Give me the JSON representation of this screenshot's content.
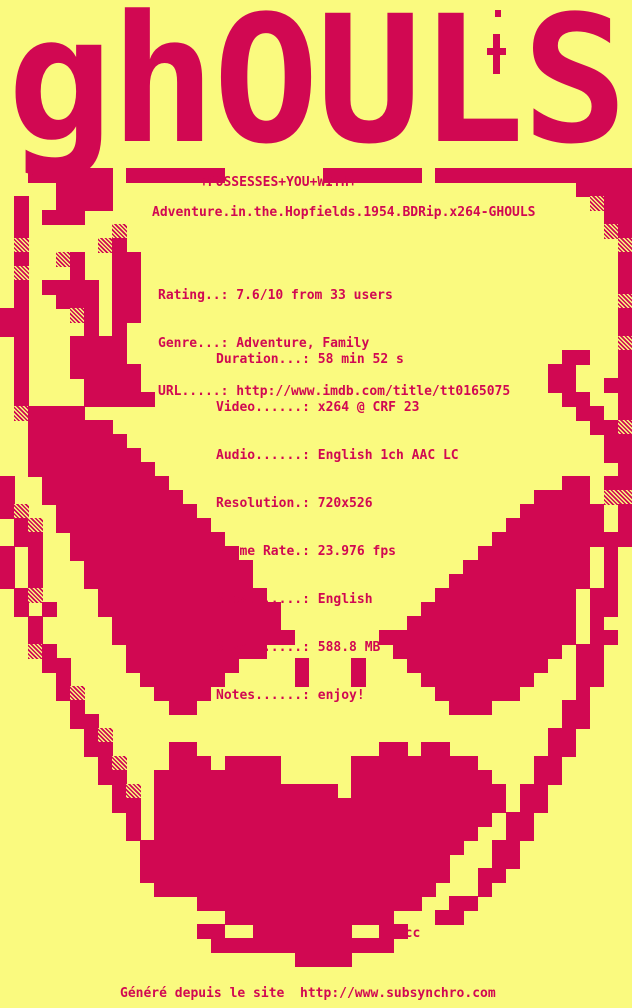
{
  "colors": {
    "background": "#fafa7f",
    "ink": "#d10852"
  },
  "logo": {
    "title": "ghOULS",
    "tagline": "+POSSESSES+YOU+WITH+",
    "cross_icon": "cross-with-dot"
  },
  "release": {
    "name": "Adventure.in.the.Hopfields.1954.BDRip.x264-GHOULS"
  },
  "imdb_info": {
    "lines": [
      "Rating..: 7.6/10 from 33 users",
      "Genre...: Adventure, Family",
      "URL.....: http://www.imdb.com/title/tt0165075"
    ]
  },
  "file_info": {
    "lines": [
      "Duration...: 58 min 52 s",
      "Video......: x264 @ CRF 23",
      "Audio......: English 1ch AAC LC",
      "Resolution.: 720x526",
      "Frame Rate.: 23.976 fps",
      "Subs.......: English",
      "Size.......: 588.8 MB",
      "Notes......: enjoy!"
    ]
  },
  "signature": "!vcc",
  "footer": "Généré depuis le site  http://www.subsynchro.com",
  "artwork": {
    "description": "grinning ghoul skull face pixel art, crimson on yellow",
    "legend": {
      "#": "crimson",
      "+": "dither",
      ".": "background"
    },
    "grid": [
      ".............................................",
      ".............................................",
      ".............................................",
      ".............................................",
      ".............................................",
      ".............................................",
      ".............................................",
      ".............................................",
      ".............................................",
      ".............................................",
      ".............................................",
      ".............................................",
      "..######.#######.......#######.##############",
      "....####.................................####",
      ".#..####..................................+##",
      ".#.###.....................................##",
      ".#......+..................................+#",
      ".+.....+#...................................+",
      ".#..+#..##..................................#",
      ".+...#..##..................................#",
      ".#.####.##..................................#",
      ".#..###.##..................................+",
      "##...+#.##..................................#",
      "##....#.#...................................#",
      ".#...####...................................+",
      ".#...####...............................##..#",
      ".#...#####.............................##...#",
      ".#....####.............................##..##",
      ".#....#####.............................##..#",
      ".+####...................................##.#",
      "..######..................................##+",
      "..#######..................................##",
      "..########.................................##",
      "..#########.................................#",
      "#..#########............................##.##",
      "#..##########.........................####.++",
      "#+..##########.......................######.#",
      ".#+.###########.....................#######.#",
      ".##..###########...................##########",
      "#.#..############.................########.#.",
      "#.#...############...............#########.#.",
      "#.#...############..............##########.#.",
      ".#+....############............##########.##.",
      ".#.#...#############..........###########.##.",
      "..#.....############.........############.#..",
      "..#.....#############......##############.##.",
      "..+#.....##########.........############.##..",
      "...##....########....#...#...##########..##..",
      "....#.....######.....#...#....########...##..",
      "....#+.....####................######....#...",
      ".....#......##..................###.....##...",
      ".....##.................................##...",
      "......#+...............................##....",
      "......##....##.............##.##.......##....",
      ".......#+...###.####.....#########....##.....",
      ".......##..#########.....##########...##.....",
      "........#+.#############.###########.##......",
      "........##.#########################.##......",
      ".........#.########################.##.......",
      ".........#.#######################..##.......",
      "..........#######################..##........",
      "..........######################...##........",
      "..........######################..##.........",
      "...........####################...#..........",
      "..............################..##...........",
      "................############...##............",
      "..............##..#######..##................",
      "...............#############.................",
      ".....................####....................",
      ".............................................",
      ".............................................",
      ".............................................",
      "............................................."
    ]
  }
}
